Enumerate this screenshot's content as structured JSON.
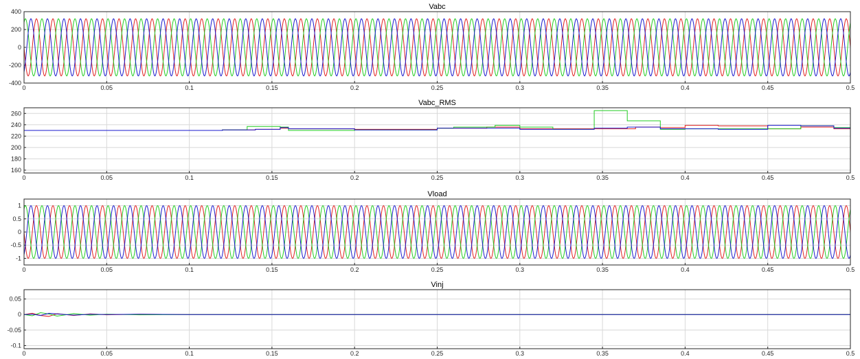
{
  "chart_data": [
    {
      "type": "line",
      "title": "Vabc",
      "xlabel": "",
      "ylabel": "",
      "xlim": [
        0,
        0.5
      ],
      "ylim": [
        -400,
        400
      ],
      "xticks": [
        "0",
        "0.05",
        "0.1",
        "0.15",
        "0.2",
        "0.25",
        "0.3",
        "0.35",
        "0.4",
        "0.45",
        "0.5"
      ],
      "yticks": [
        "400",
        "200",
        "0",
        "-200",
        "-400"
      ],
      "grid": true,
      "legend": "none",
      "waveform": {
        "kind": "three-phase-sine",
        "amplitude": 320,
        "frequency_hz": 100,
        "initial_phase_a_deg": 180
      },
      "series": [
        {
          "color": "#e02020"
        },
        {
          "color": "#22cc22"
        },
        {
          "color": "#1a1acc"
        }
      ]
    },
    {
      "type": "line",
      "title": "Vabc_RMS",
      "xlabel": "",
      "ylabel": "",
      "xlim": [
        0,
        0.5
      ],
      "ylim": [
        155,
        270
      ],
      "xticks": [
        "0",
        "0.05",
        "0.1",
        "0.15",
        "0.2",
        "0.25",
        "0.3",
        "0.35",
        "0.4",
        "0.45",
        "0.5"
      ],
      "yticks": [
        "260",
        "240",
        "220",
        "200",
        "180",
        "160"
      ],
      "grid": true,
      "legend": "none",
      "series": [
        {
          "color": "#e02020",
          "x": [
            0,
            0.06,
            0.12,
            0.14,
            0.155,
            0.16,
            0.2,
            0.25,
            0.28,
            0.3,
            0.32,
            0.345,
            0.37,
            0.385,
            0.4,
            0.42,
            0.45,
            0.47,
            0.49,
            0.5
          ],
          "y": [
            230,
            230,
            231,
            232,
            234,
            233,
            232,
            234,
            236,
            233,
            233,
            233,
            236,
            235,
            239,
            238,
            233,
            236,
            233,
            234
          ]
        },
        {
          "color": "#22cc22",
          "x": [
            0,
            0.06,
            0.12,
            0.135,
            0.155,
            0.16,
            0.2,
            0.25,
            0.26,
            0.285,
            0.3,
            0.32,
            0.345,
            0.365,
            0.385,
            0.4,
            0.42,
            0.45,
            0.47,
            0.49,
            0.5
          ],
          "y": [
            230,
            230,
            231,
            237,
            236,
            230,
            231,
            234,
            236,
            239,
            236,
            232,
            265,
            247,
            232,
            233,
            233,
            233,
            238,
            235,
            233
          ]
        },
        {
          "color": "#1a1acc",
          "x": [
            0,
            0.06,
            0.12,
            0.14,
            0.155,
            0.16,
            0.2,
            0.25,
            0.3,
            0.32,
            0.345,
            0.365,
            0.385,
            0.4,
            0.42,
            0.45,
            0.47,
            0.49,
            0.5
          ],
          "y": [
            230,
            230,
            231,
            232,
            235,
            233,
            231,
            234,
            232,
            232,
            234,
            236,
            233,
            233,
            232,
            239,
            238,
            234,
            235
          ]
        }
      ]
    },
    {
      "type": "line",
      "title": "Vload",
      "xlabel": "",
      "ylabel": "",
      "xlim": [
        0,
        0.5
      ],
      "ylim": [
        -1.25,
        1.25
      ],
      "xticks": [
        "0",
        "0.05",
        "0.1",
        "0.15",
        "0.2",
        "0.25",
        "0.3",
        "0.35",
        "0.4",
        "0.45",
        "0.5"
      ],
      "yticks": [
        "1",
        "0.5",
        "0",
        "-0.5",
        "-1"
      ],
      "grid": true,
      "legend": "none",
      "waveform": {
        "kind": "three-phase-sine",
        "amplitude": 1,
        "frequency_hz": 100,
        "initial_phase_a_deg": 180
      },
      "series": [
        {
          "color": "#e02020"
        },
        {
          "color": "#22cc22"
        },
        {
          "color": "#1a1acc"
        }
      ]
    },
    {
      "type": "line",
      "title": "Vinj",
      "xlabel": "",
      "ylabel": "",
      "xlim": [
        0,
        0.5
      ],
      "ylim": [
        -0.11,
        0.08
      ],
      "xticks": [
        "0",
        "0.05",
        "0.1",
        "0.15",
        "0.2",
        "0.25",
        "0.3",
        "0.35",
        "0.4",
        "0.45",
        "0.5"
      ],
      "yticks": [
        "0.05",
        "0",
        "-0.05",
        "-0.1"
      ],
      "grid": true,
      "legend": "none",
      "series": [
        {
          "color": "#e02020",
          "x": [
            0,
            0.005,
            0.01,
            0.015,
            0.02,
            0.03,
            0.04,
            0.05,
            0.07,
            0.1,
            0.5
          ],
          "y": [
            0,
            0.004,
            -0.003,
            -0.006,
            0.003,
            -0.003,
            0.002,
            -0.001,
            0.001,
            0,
            0
          ]
        },
        {
          "color": "#22cc22",
          "x": [
            0,
            0.005,
            0.01,
            0.015,
            0.02,
            0.03,
            0.04,
            0.05,
            0.07,
            0.1,
            0.5
          ],
          "y": [
            0,
            -0.004,
            0.006,
            0.002,
            -0.005,
            0.003,
            -0.002,
            0.001,
            -0.001,
            0,
            0
          ]
        },
        {
          "color": "#1a1acc",
          "x": [
            0,
            0.005,
            0.01,
            0.015,
            0.02,
            0.03,
            0.04,
            0.05,
            0.07,
            0.1,
            0.5
          ],
          "y": [
            0,
            0.001,
            -0.003,
            0.004,
            0.002,
            -0.002,
            0.001,
            0,
            0.001,
            0,
            0
          ]
        }
      ]
    }
  ]
}
